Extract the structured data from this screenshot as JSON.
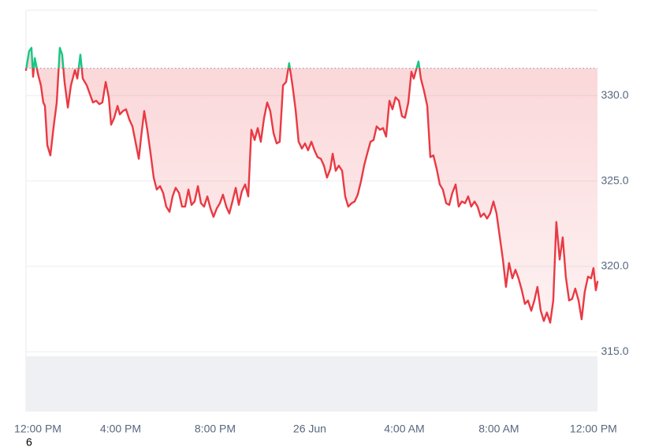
{
  "chart_data": {
    "type": "line",
    "color": "#ea3943",
    "color_above": "#16c784",
    "reference_line": 331.6,
    "grid": true,
    "xlim": [
      0,
      24.17
    ],
    "xticks": [
      {
        "value": 0,
        "label": "12:00 PM"
      },
      {
        "value": 4,
        "label": "4:00 PM"
      },
      {
        "value": 8,
        "label": "8:00 PM"
      },
      {
        "value": 12,
        "label": "26 Jun"
      },
      {
        "value": 16,
        "label": "4:00 AM"
      },
      {
        "value": 20,
        "label": "8:00 AM"
      },
      {
        "value": 24,
        "label": "12:00 PM"
      }
    ],
    "ylim": [
      311.5,
      335.0
    ],
    "yticks": [
      {
        "value": 315,
        "label": "315.0"
      },
      {
        "value": 320,
        "label": "320.0"
      },
      {
        "value": 325,
        "label": "325.0"
      },
      {
        "value": 330,
        "label": "330.0"
      }
    ],
    "x": [
      0,
      0.13,
      0.23,
      0.3,
      0.37,
      0.5,
      0.63,
      0.73,
      0.8,
      0.9,
      1.03,
      1.17,
      1.3,
      1.43,
      1.53,
      1.63,
      1.77,
      1.9,
      2.07,
      2.17,
      2.3,
      2.4,
      2.57,
      2.7,
      2.83,
      2.97,
      3.1,
      3.23,
      3.37,
      3.5,
      3.6,
      3.73,
      3.87,
      3.97,
      4.1,
      4.23,
      4.37,
      4.5,
      4.63,
      4.77,
      4.87,
      5,
      5.13,
      5.27,
      5.4,
      5.53,
      5.67,
      5.8,
      5.93,
      6.07,
      6.2,
      6.33,
      6.47,
      6.6,
      6.73,
      6.87,
      7,
      7.13,
      7.27,
      7.4,
      7.53,
      7.67,
      7.8,
      7.93,
      8.07,
      8.2,
      8.33,
      8.47,
      8.6,
      8.73,
      8.87,
      9,
      9.13,
      9.27,
      9.4,
      9.53,
      9.67,
      9.8,
      9.93,
      10.07,
      10.2,
      10.33,
      10.47,
      10.6,
      10.73,
      10.87,
      11,
      11.13,
      11.27,
      11.4,
      11.53,
      11.67,
      11.8,
      11.93,
      12.07,
      12.2,
      12.33,
      12.47,
      12.6,
      12.73,
      12.87,
      12.97,
      13.1,
      13.23,
      13.37,
      13.5,
      13.63,
      13.77,
      13.9,
      14.03,
      14.17,
      14.3,
      14.43,
      14.57,
      14.7,
      14.83,
      14.97,
      15.1,
      15.23,
      15.37,
      15.5,
      15.63,
      15.77,
      15.9,
      16.03,
      16.17,
      16.3,
      16.4,
      16.5,
      16.6,
      16.7,
      16.83,
      16.97,
      17.1,
      17.23,
      17.37,
      17.5,
      17.63,
      17.77,
      17.9,
      18.03,
      18.17,
      18.3,
      18.43,
      18.57,
      18.7,
      18.83,
      18.97,
      19.1,
      19.23,
      19.37,
      19.5,
      19.63,
      19.77,
      19.9,
      20.03,
      20.17,
      20.3,
      20.43,
      20.57,
      20.7,
      20.83,
      20.97,
      21.1,
      21.23,
      21.37,
      21.5,
      21.63,
      21.77,
      21.9,
      22.03,
      22.17,
      22.3,
      22.43,
      22.57,
      22.7,
      22.83,
      22.97,
      23.1,
      23.23,
      23.37,
      23.5,
      23.63,
      23.77,
      23.9,
      24,
      24.1,
      24.17
    ],
    "values": [
      331.5,
      332.6,
      332.8,
      331.1,
      332.2,
      331.3,
      330.6,
      329.6,
      329.4,
      327.1,
      326.5,
      328.2,
      329.6,
      332.8,
      332.4,
      330.8,
      329.3,
      330.6,
      331.5,
      331.0,
      332.4,
      331.0,
      330.6,
      330.1,
      329.6,
      329.7,
      329.5,
      329.6,
      330.8,
      329.9,
      328.3,
      328.7,
      329.4,
      328.9,
      329.1,
      329.2,
      328.6,
      328.2,
      327.3,
      326.3,
      327.6,
      329.1,
      328.0,
      326.6,
      325.2,
      324.5,
      324.7,
      324.3,
      323.5,
      323.2,
      324.1,
      324.6,
      324.3,
      323.5,
      323.5,
      324.5,
      323.6,
      323.8,
      324.7,
      323.7,
      323.5,
      324.1,
      323.4,
      322.9,
      323.4,
      323.7,
      324.2,
      323.5,
      323.1,
      323.8,
      324.6,
      323.6,
      324.4,
      324.8,
      324.1,
      328.0,
      327.4,
      328.1,
      327.3,
      328.7,
      329.6,
      329.1,
      327.8,
      327.2,
      327.3,
      330.6,
      330.8,
      331.9,
      330.6,
      329.2,
      327.3,
      326.9,
      327.2,
      326.8,
      327.3,
      326.8,
      326.4,
      326.3,
      325.9,
      325.2,
      325.7,
      326.6,
      325.6,
      325.9,
      325.6,
      324.1,
      323.5,
      323.7,
      323.8,
      324.2,
      325.0,
      325.9,
      326.6,
      327.3,
      327.4,
      328.2,
      328.0,
      328.1,
      327.6,
      329.7,
      329.2,
      329.9,
      329.7,
      328.8,
      328.7,
      329.6,
      331.4,
      331.0,
      331.5,
      332.0,
      331.0,
      330.3,
      329.4,
      326.4,
      326.5,
      325.7,
      324.8,
      324.5,
      323.7,
      323.6,
      324.3,
      324.8,
      323.5,
      323.8,
      323.7,
      324.1,
      323.5,
      323.8,
      323.5,
      322.9,
      323.1,
      322.8,
      323.1,
      323.8,
      323.1,
      321.8,
      320.4,
      318.8,
      320.2,
      319.3,
      319.8,
      319.3,
      318.6,
      317.8,
      318.0,
      317.4,
      318.0,
      318.8,
      317.4,
      316.8,
      317.3,
      316.7,
      318.0,
      322.6,
      320.4,
      321.7,
      319.4,
      318.0,
      318.1,
      318.7,
      318.0,
      316.9,
      318.5,
      319.4,
      319.3,
      319.9,
      318.6,
      319.1
    ]
  },
  "footnote": "6"
}
